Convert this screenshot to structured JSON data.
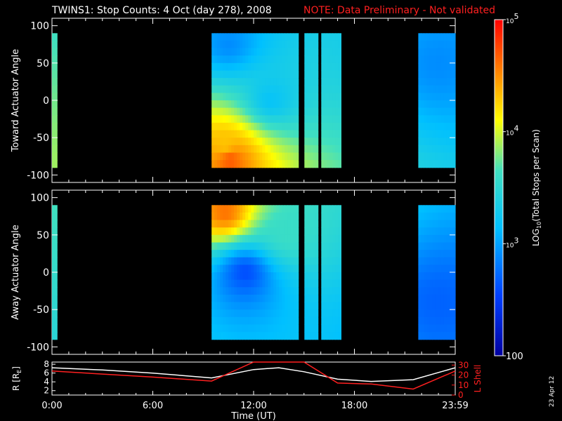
{
  "title": {
    "main": "TWINS1: Stop Counts:  4 Oct (day 278), 2008",
    "note": "NOTE: Data Preliminary - Not validated"
  },
  "stamp": "23 Apr 12",
  "colors": {
    "background": "#000000",
    "note_red": "#ff2020",
    "r_line": "#ffffff",
    "lshell_line": "#ff2020"
  },
  "chart_data": [
    {
      "type": "heatmap",
      "panel": "toward",
      "ylabel": "Toward Actuator Angle",
      "ylim": [
        -110,
        110
      ],
      "yticks": [
        -100,
        -50,
        0,
        50,
        100
      ],
      "xlim_hours": [
        0,
        24
      ],
      "data_intervals_hours": [
        [
          0.0,
          0.3
        ],
        [
          9.5,
          17.2
        ],
        [
          21.8,
          24.0
        ]
      ],
      "gaps_hours": [
        [
          14.5,
          14.55
        ],
        [
          14.7,
          14.95
        ],
        [
          15.8,
          16.0
        ]
      ],
      "colorbar_log10_range": [
        2,
        5
      ],
      "description_points": [
        {
          "angle": 75,
          "hour": 10.5,
          "log10": 2.9
        },
        {
          "angle": -60,
          "hour": 10.3,
          "log10": 4.3
        },
        {
          "angle": -80,
          "hour": 10.6,
          "log10": 4.7
        },
        {
          "angle": 0,
          "hour": 13.0,
          "log10": 3.2
        },
        {
          "angle": 50,
          "hour": 23.0,
          "log10": 2.9
        }
      ]
    },
    {
      "type": "heatmap",
      "panel": "away",
      "ylabel": "Away Actuator Angle",
      "ylim": [
        -110,
        110
      ],
      "yticks": [
        -100,
        -50,
        0,
        50,
        100
      ],
      "xlim_hours": [
        0,
        24
      ],
      "data_intervals_hours": [
        [
          0.0,
          0.3
        ],
        [
          9.5,
          17.2
        ],
        [
          21.8,
          24.0
        ]
      ],
      "gaps_hours": [
        [
          14.5,
          14.55
        ],
        [
          14.7,
          14.95
        ],
        [
          15.8,
          16.0
        ]
      ],
      "colorbar_log10_range": [
        2,
        5
      ],
      "description_points": [
        {
          "angle": 80,
          "hour": 10.3,
          "log10": 4.6
        },
        {
          "angle": 50,
          "hour": 14.0,
          "log10": 3.6
        },
        {
          "angle": 0,
          "hour": 11.5,
          "log10": 2.6
        },
        {
          "angle": -40,
          "hour": 23.0,
          "log10": 2.7
        }
      ]
    },
    {
      "type": "line",
      "panel": "orbit",
      "ylabel": "R [R",
      "ylabel_sub": "E",
      "ylabel_close": "]",
      "y2label": "L Shell",
      "ylim": [
        1,
        8.5
      ],
      "yticks": [
        2,
        4,
        6,
        8
      ],
      "y2lim": [
        0,
        33
      ],
      "y2ticks": [
        0,
        10,
        20,
        30
      ],
      "x_hours": [
        0.0,
        3.0,
        6.0,
        9.5,
        12.0,
        13.5,
        15.0,
        17.0,
        19.0,
        21.5,
        24.0
      ],
      "series": [
        {
          "axis": "left",
          "values": [
            7.2,
            6.7,
            6.0,
            4.9,
            6.8,
            7.2,
            6.3,
            4.6,
            4.1,
            4.5,
            7.2
          ]
        },
        {
          "axis": "right",
          "values": [
            24,
            21,
            18,
            14,
            34,
            34,
            34,
            12,
            11,
            6,
            24
          ]
        }
      ]
    }
  ],
  "xaxis": {
    "ticks": [
      {
        "hour": 0,
        "label": "0:00"
      },
      {
        "hour": 6,
        "label": "6:00"
      },
      {
        "hour": 12,
        "label": "12:00"
      },
      {
        "hour": 18,
        "label": "18:00"
      },
      {
        "hour": 24,
        "label": "23:59"
      }
    ],
    "label": "Time (UT)"
  },
  "colorbar": {
    "label_pre": "LOG",
    "label_sub": "10",
    "label_post": "(Total Stops per Scan)",
    "ticks": [
      {
        "log10": 5,
        "base": "10",
        "exp": "5"
      },
      {
        "log10": 4,
        "base": "10",
        "exp": "4"
      },
      {
        "log10": 3,
        "base": "10",
        "exp": "3"
      },
      {
        "log10": 2,
        "base": "100",
        "exp": ""
      }
    ]
  }
}
